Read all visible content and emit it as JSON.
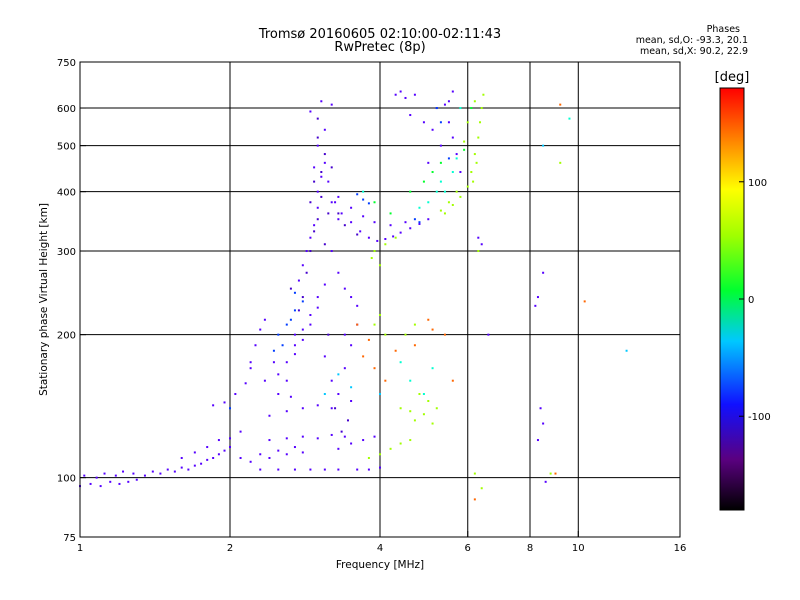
{
  "header": {
    "title_line1": "Tromsø 20160605 02:10:00-02:11:43",
    "title_line2": "RwPretec (8p)"
  },
  "phase_box": {
    "title": "Phases",
    "o_line": "mean, sd,O: -93.3, 20.1",
    "x_line": "mean, sd,X:  90.2, 22.9"
  },
  "chart_data": {
    "type": "scatter",
    "xlabel": "Frequency [MHz]",
    "ylabel": "Stationary phase Virtual Height [km]",
    "xscale": "log",
    "yscale": "log",
    "xlim": [
      1,
      16
    ],
    "ylim": [
      75,
      750
    ],
    "xticks": [
      1,
      2,
      4,
      6,
      8,
      10,
      16
    ],
    "xtick_labels": [
      "1",
      "2",
      "4",
      "6",
      "8",
      "10",
      "16"
    ],
    "yticks": [
      75,
      100,
      200,
      300,
      400,
      500,
      600,
      750
    ],
    "ytick_labels": [
      "75",
      "100",
      "200",
      "300",
      "400",
      "500",
      "600",
      "750"
    ],
    "grid_x": [
      2,
      4,
      6,
      8,
      10
    ],
    "grid_y": [
      100,
      200,
      300,
      400,
      500,
      600
    ],
    "colorbar": {
      "label": "[deg]",
      "range": [
        -180,
        180
      ],
      "ticks": [
        100,
        0,
        -100
      ],
      "tick_labels": [
        "100",
        "0",
        "-100"
      ]
    },
    "series": [
      {
        "phase": -95,
        "points": [
          [
            1.0,
            96
          ],
          [
            1.05,
            97
          ],
          [
            1.1,
            96
          ],
          [
            1.15,
            98
          ],
          [
            1.2,
            97
          ],
          [
            1.25,
            98
          ],
          [
            1.3,
            99
          ],
          [
            1.02,
            101
          ],
          [
            1.08,
            100
          ],
          [
            1.12,
            102
          ],
          [
            1.18,
            101
          ],
          [
            1.22,
            103
          ],
          [
            1.28,
            102
          ],
          [
            1.35,
            101
          ],
          [
            1.4,
            103
          ],
          [
            1.45,
            102
          ],
          [
            1.5,
            104
          ],
          [
            1.55,
            103
          ],
          [
            1.6,
            105
          ],
          [
            1.65,
            104
          ],
          [
            1.7,
            106
          ],
          [
            1.75,
            107
          ],
          [
            1.8,
            109
          ],
          [
            1.85,
            110
          ],
          [
            1.9,
            112
          ],
          [
            1.95,
            114
          ],
          [
            2.0,
            116
          ],
          [
            1.6,
            110
          ],
          [
            1.7,
            113
          ],
          [
            1.8,
            116
          ],
          [
            1.9,
            120
          ],
          [
            2.0,
            121
          ],
          [
            2.1,
            125
          ],
          [
            1.85,
            142
          ],
          [
            1.95,
            144
          ],
          [
            2.05,
            150
          ],
          [
            2.15,
            158
          ],
          [
            2.2,
            175
          ],
          [
            2.25,
            190
          ],
          [
            2.3,
            205
          ],
          [
            2.35,
            215
          ],
          [
            2.1,
            110
          ],
          [
            2.2,
            108
          ],
          [
            2.3,
            112
          ],
          [
            2.4,
            110
          ],
          [
            2.5,
            114
          ],
          [
            2.6,
            112
          ],
          [
            2.7,
            116
          ],
          [
            2.8,
            113
          ],
          [
            2.3,
            104
          ],
          [
            2.5,
            104
          ],
          [
            2.7,
            104
          ],
          [
            2.9,
            104
          ],
          [
            3.1,
            104
          ],
          [
            3.3,
            104
          ],
          [
            2.4,
            120
          ],
          [
            2.6,
            121
          ],
          [
            2.8,
            122
          ],
          [
            3.0,
            121
          ],
          [
            3.2,
            123
          ],
          [
            3.4,
            122
          ],
          [
            2.4,
            135
          ],
          [
            2.6,
            138
          ],
          [
            2.8,
            140
          ],
          [
            3.0,
            142
          ],
          [
            3.2,
            140
          ],
          [
            3.5,
            145
          ],
          [
            2.5,
            165
          ],
          [
            2.6,
            175
          ],
          [
            2.7,
            190
          ],
          [
            2.8,
            205
          ],
          [
            2.9,
            220
          ],
          [
            3.0,
            240
          ],
          [
            2.6,
            160
          ],
          [
            2.7,
            182
          ],
          [
            2.8,
            195
          ],
          [
            2.9,
            210
          ],
          [
            3.0,
            228
          ],
          [
            3.1,
            255
          ],
          [
            2.75,
            260
          ],
          [
            2.8,
            280
          ],
          [
            2.85,
            300
          ],
          [
            2.9,
            320
          ],
          [
            2.95,
            340
          ],
          [
            3.0,
            370
          ],
          [
            3.0,
            400
          ],
          [
            3.05,
            430
          ],
          [
            3.1,
            460
          ],
          [
            3.0,
            500
          ],
          [
            3.1,
            540
          ],
          [
            2.9,
            590
          ],
          [
            3.05,
            620
          ],
          [
            3.2,
            610
          ],
          [
            2.95,
            450
          ],
          [
            3.15,
            420
          ],
          [
            3.25,
            380
          ],
          [
            3.3,
            350
          ],
          [
            3.2,
            300
          ],
          [
            3.3,
            270
          ],
          [
            3.4,
            250
          ],
          [
            3.5,
            240
          ],
          [
            3.1,
            180
          ],
          [
            3.2,
            160
          ],
          [
            3.3,
            150
          ],
          [
            3.4,
            170
          ],
          [
            3.5,
            190
          ],
          [
            3.6,
            210
          ],
          [
            3.3,
            115
          ],
          [
            3.5,
            118
          ],
          [
            3.7,
            120
          ],
          [
            3.9,
            122
          ],
          [
            3.6,
            104
          ],
          [
            3.8,
            104
          ],
          [
            4.0,
            105
          ],
          [
            3.2,
            380
          ],
          [
            3.35,
            360
          ],
          [
            3.5,
            345
          ],
          [
            3.65,
            330
          ],
          [
            3.8,
            320
          ],
          [
            3.95,
            315
          ],
          [
            4.1,
            318
          ],
          [
            4.25,
            322
          ],
          [
            4.4,
            328
          ],
          [
            4.6,
            335
          ],
          [
            4.8,
            342
          ],
          [
            5.0,
            350
          ],
          [
            3.3,
            390
          ],
          [
            3.5,
            370
          ],
          [
            3.7,
            355
          ],
          [
            3.9,
            345
          ],
          [
            4.2,
            340
          ],
          [
            4.5,
            345
          ],
          [
            4.7,
            640
          ],
          [
            4.5,
            630
          ],
          [
            4.3,
            640
          ],
          [
            4.4,
            650
          ],
          [
            5.2,
            600
          ],
          [
            5.5,
            560
          ],
          [
            5.6,
            520
          ],
          [
            5.7,
            480
          ],
          [
            5.8,
            440
          ],
          [
            5.5,
            620
          ],
          [
            5.6,
            650
          ],
          [
            5.4,
            610
          ],
          [
            5.1,
            540
          ],
          [
            5.3,
            500
          ],
          [
            5.0,
            460
          ],
          [
            4.9,
            560
          ],
          [
            4.6,
            580
          ],
          [
            8.5,
            270
          ],
          [
            8.3,
            240
          ],
          [
            8.2,
            230
          ],
          [
            8.4,
            140
          ],
          [
            8.5,
            130
          ],
          [
            8.3,
            120
          ],
          [
            8.6,
            98
          ],
          [
            6.3,
            320
          ],
          [
            6.4,
            310
          ],
          [
            6.6,
            200
          ],
          [
            2.2,
            170
          ],
          [
            2.35,
            160
          ],
          [
            2.5,
            150
          ],
          [
            2.65,
            148
          ],
          [
            2.45,
            175
          ],
          [
            2.7,
            200
          ],
          [
            3.4,
            200
          ],
          [
            3.6,
            230
          ]
        ]
      },
      {
        "phase": -125,
        "points": [
          [
            2.9,
            300
          ],
          [
            3.0,
            350
          ],
          [
            3.05,
            390
          ],
          [
            2.95,
            420
          ],
          [
            3.1,
            480
          ],
          [
            3.0,
            520
          ],
          [
            2.85,
            270
          ],
          [
            2.95,
            330
          ],
          [
            3.15,
            360
          ],
          [
            3.05,
            440
          ],
          [
            2.9,
            380
          ],
          [
            3.1,
            310
          ],
          [
            3.3,
            360
          ],
          [
            3.4,
            340
          ],
          [
            3.6,
            325
          ],
          [
            3.2,
            450
          ],
          [
            3.0,
            570
          ],
          [
            2.8,
            240
          ],
          [
            2.75,
            225
          ],
          [
            2.65,
            250
          ],
          [
            3.25,
            140
          ],
          [
            3.35,
            125
          ],
          [
            3.45,
            132
          ],
          [
            3.15,
            200
          ]
        ]
      },
      {
        "phase": -55,
        "points": [
          [
            2.6,
            210
          ],
          [
            2.7,
            225
          ],
          [
            2.5,
            200
          ],
          [
            2.55,
            190
          ],
          [
            2.8,
            235
          ],
          [
            2.65,
            215
          ],
          [
            2.45,
            185
          ],
          [
            2.7,
            245
          ],
          [
            3.7,
            385
          ],
          [
            3.8,
            378
          ],
          [
            3.6,
            395
          ],
          [
            5.2,
            600
          ],
          [
            5.3,
            560
          ],
          [
            5.5,
            470
          ],
          [
            4.7,
            350
          ],
          [
            4.8,
            345
          ],
          [
            2.0,
            140
          ]
        ]
      },
      {
        "phase": 5,
        "points": [
          [
            4.8,
            370
          ],
          [
            5.0,
            380
          ],
          [
            5.2,
            400
          ],
          [
            5.3,
            420
          ],
          [
            5.6,
            440
          ],
          [
            5.7,
            470
          ],
          [
            5.4,
            400
          ],
          [
            4.6,
            160
          ],
          [
            4.9,
            150
          ],
          [
            5.1,
            170
          ],
          [
            4.4,
            175
          ],
          [
            3.7,
            400
          ],
          [
            5.8,
            600
          ],
          [
            9.6,
            570
          ]
        ]
      },
      {
        "phase": 95,
        "points": [
          [
            5.4,
            360
          ],
          [
            5.6,
            375
          ],
          [
            5.8,
            390
          ],
          [
            6.0,
            410
          ],
          [
            6.1,
            440
          ],
          [
            6.2,
            480
          ],
          [
            6.3,
            520
          ],
          [
            6.35,
            560
          ],
          [
            6.4,
            600
          ],
          [
            6.45,
            640
          ],
          [
            6.2,
            620
          ],
          [
            6.0,
            560
          ],
          [
            5.9,
            510
          ],
          [
            5.7,
            400
          ],
          [
            5.5,
            380
          ],
          [
            5.3,
            365
          ],
          [
            6.25,
            460
          ],
          [
            6.15,
            420
          ],
          [
            4.8,
            150
          ],
          [
            5.0,
            145
          ],
          [
            5.2,
            140
          ],
          [
            4.6,
            138
          ],
          [
            4.4,
            140
          ],
          [
            4.7,
            132
          ],
          [
            4.9,
            136
          ],
          [
            5.1,
            130
          ],
          [
            4.2,
            115
          ],
          [
            4.4,
            118
          ],
          [
            4.6,
            120
          ],
          [
            4.0,
            112
          ],
          [
            3.8,
            110
          ],
          [
            3.9,
            300
          ],
          [
            4.0,
            280
          ],
          [
            3.85,
            290
          ],
          [
            4.1,
            310
          ],
          [
            4.3,
            320
          ],
          [
            3.9,
            210
          ],
          [
            4.0,
            220
          ],
          [
            4.1,
            200
          ],
          [
            4.5,
            200
          ],
          [
            4.7,
            210
          ],
          [
            6.3,
            300
          ],
          [
            6.4,
            95
          ],
          [
            6.2,
            102
          ],
          [
            8.8,
            102
          ],
          [
            9.2,
            460
          ]
        ]
      },
      {
        "phase": 155,
        "points": [
          [
            4.1,
            160
          ],
          [
            3.9,
            170
          ],
          [
            3.7,
            180
          ],
          [
            4.3,
            185
          ],
          [
            5.0,
            215
          ],
          [
            5.1,
            205
          ],
          [
            5.4,
            200
          ],
          [
            3.6,
            210
          ],
          [
            5.6,
            160
          ],
          [
            9.2,
            610
          ],
          [
            10.3,
            235
          ],
          [
            9.0,
            102
          ],
          [
            6.2,
            90
          ],
          [
            4.7,
            190
          ],
          [
            3.8,
            195
          ]
        ]
      },
      {
        "phase": 45,
        "points": [
          [
            4.9,
            420
          ],
          [
            5.1,
            440
          ],
          [
            5.3,
            460
          ],
          [
            4.6,
            400
          ],
          [
            5.9,
            490
          ],
          [
            6.1,
            600
          ],
          [
            3.9,
            380
          ],
          [
            4.2,
            360
          ]
        ]
      },
      {
        "phase": -20,
        "points": [
          [
            3.1,
            150
          ],
          [
            3.3,
            165
          ],
          [
            4.0,
            150
          ],
          [
            3.5,
            155
          ],
          [
            12.5,
            185
          ],
          [
            8.5,
            500
          ]
        ]
      }
    ]
  }
}
